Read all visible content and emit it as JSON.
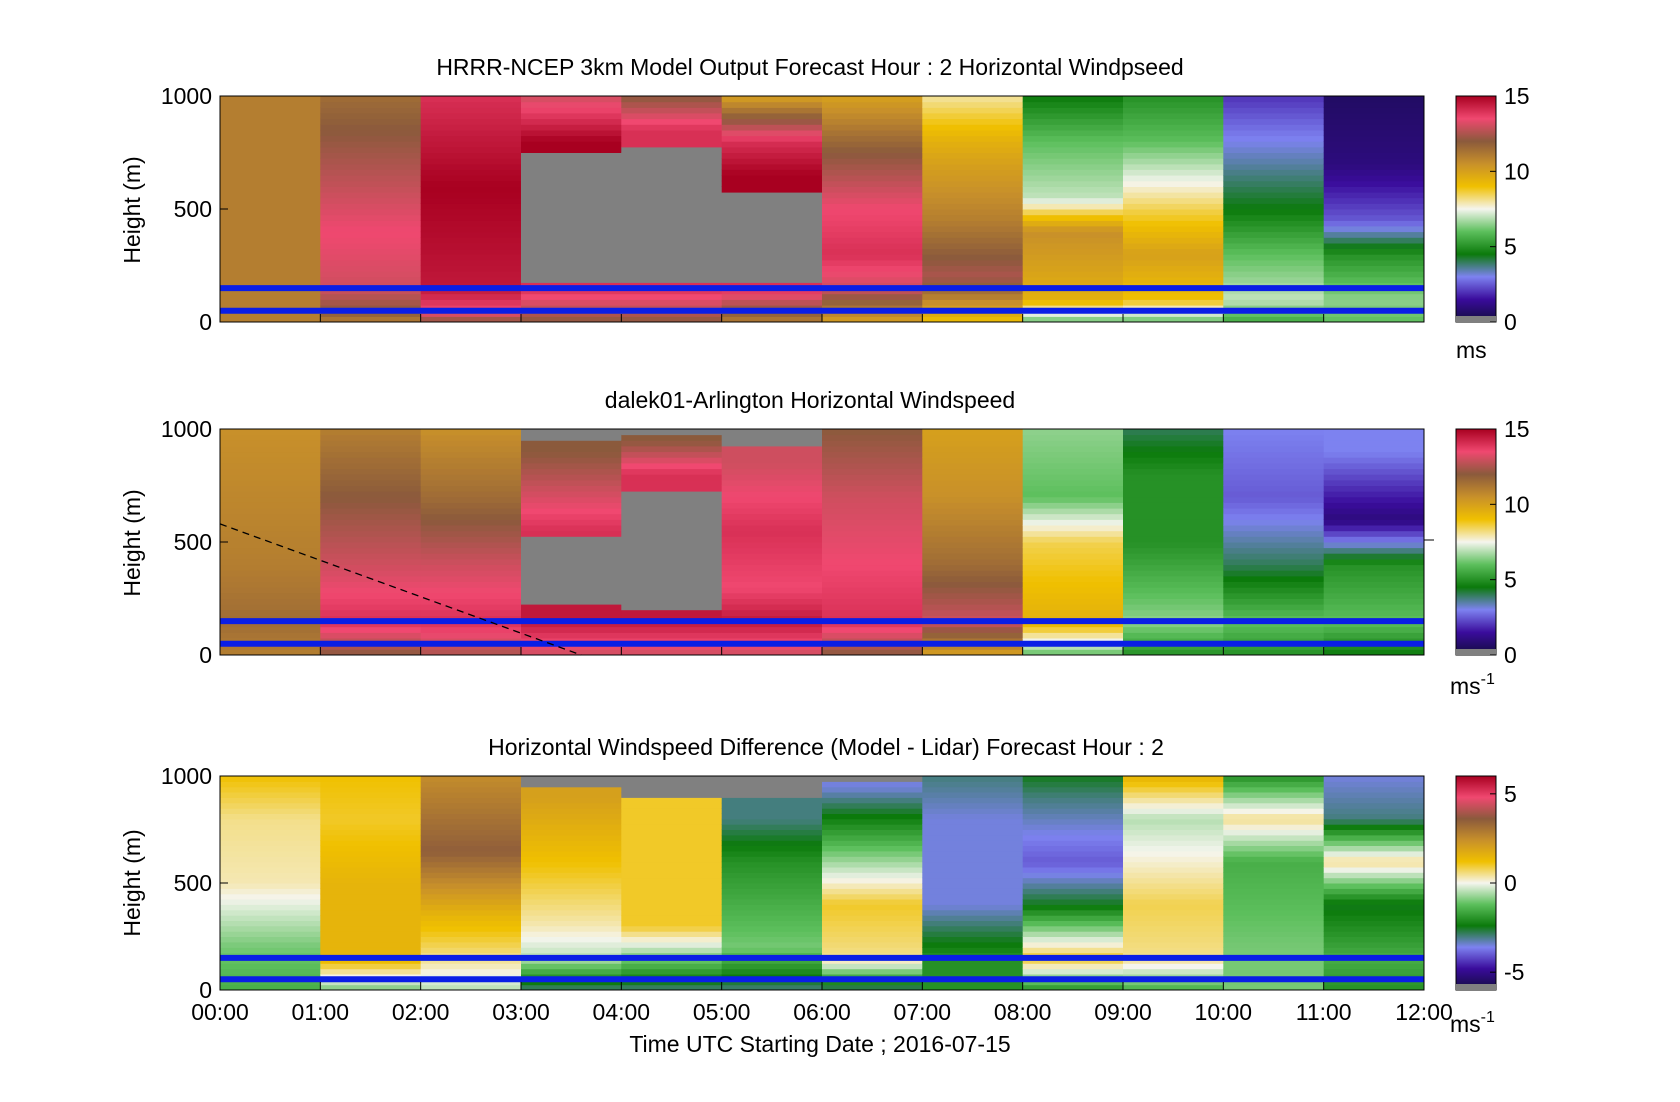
{
  "colors": {
    "missing": "#808080",
    "line_blue": "#0a1ee6",
    "sequential_stops": [
      "#120c3e",
      "#3a0c9c",
      "#7d82f0",
      "#0b7a0b",
      "#5cbf5c",
      "#f5f5ee",
      "#f0c000",
      "#c8902a",
      "#8b5a3c",
      "#f04870",
      "#a80020"
    ],
    "diverging_stops": [
      "#120c3e",
      "#3a0c9c",
      "#7d82f0",
      "#0b7a0b",
      "#5cbf5c",
      "#f5f5ee",
      "#f0c000",
      "#c8902a",
      "#8b5a3c",
      "#f04870",
      "#a80020"
    ]
  },
  "xaxis": {
    "ticks": [
      "00:00",
      "01:00",
      "02:00",
      "03:00",
      "04:00",
      "05:00",
      "06:00",
      "07:00",
      "08:00",
      "09:00",
      "10:00",
      "11:00",
      "12:00"
    ],
    "label": "Time UTC  Starting Date ; 2016-07-15"
  },
  "chart_data": [
    {
      "type": "heatmap",
      "title": "HRRR-NCEP 3km Model Output   Forecast Hour : 2 Horizontal Windpseed",
      "ylabel": "Height (m)",
      "yticks": [
        "0",
        "500",
        "1000"
      ],
      "ylim": [
        0,
        1000
      ],
      "xlim_hours": [
        0,
        12
      ],
      "colorbar": {
        "min": 0,
        "max": 15,
        "ticks": [
          "0",
          "5",
          "10",
          "15"
        ],
        "unit": "ms",
        "unit_sup": ""
      },
      "hlines_m": [
        150,
        50
      ],
      "hourly_profiles_ms": [
        [
          [
            0,
            11
          ],
          [
            60,
            11
          ],
          [
            100,
            11
          ],
          [
            1000,
            11
          ]
        ],
        [
          [
            0,
            11
          ],
          [
            50,
            12
          ],
          [
            150,
            13
          ],
          [
            400,
            13.5
          ],
          [
            700,
            12.5
          ],
          [
            1000,
            11.5
          ]
        ],
        [
          [
            0,
            12
          ],
          [
            50,
            13.5
          ],
          [
            150,
            14.5
          ],
          [
            600,
            15
          ],
          [
            1000,
            14
          ]
        ],
        [
          [
            0,
            12
          ],
          [
            150,
            14
          ],
          [
            200,
            null
          ],
          [
            700,
            null
          ],
          [
            800,
            15
          ],
          [
            1000,
            13
          ]
        ],
        [
          [
            0,
            12
          ],
          [
            150,
            14
          ],
          [
            200,
            null
          ],
          [
            700,
            null
          ],
          [
            850,
            14
          ],
          [
            1000,
            12
          ]
        ],
        [
          [
            0,
            11
          ],
          [
            150,
            14
          ],
          [
            200,
            null
          ],
          [
            500,
            null
          ],
          [
            650,
            15
          ],
          [
            800,
            14
          ],
          [
            1000,
            10
          ]
        ],
        [
          [
            0,
            10
          ],
          [
            150,
            13
          ],
          [
            300,
            14
          ],
          [
            500,
            13.5
          ],
          [
            750,
            12
          ],
          [
            1000,
            10
          ]
        ],
        [
          [
            0,
            9
          ],
          [
            200,
            12.5
          ],
          [
            450,
            11
          ],
          [
            700,
            10
          ],
          [
            800,
            9.5
          ],
          [
            1000,
            8
          ]
        ],
        [
          [
            0,
            6
          ],
          [
            100,
            9.5
          ],
          [
            400,
            10.5
          ],
          [
            550,
            7
          ],
          [
            800,
            6
          ],
          [
            1000,
            4.5
          ]
        ],
        [
          [
            0,
            6
          ],
          [
            100,
            9
          ],
          [
            300,
            10
          ],
          [
            500,
            8.5
          ],
          [
            800,
            6
          ],
          [
            1000,
            5
          ]
        ],
        [
          [
            0,
            5.5
          ],
          [
            100,
            7
          ],
          [
            300,
            6
          ],
          [
            500,
            4.5
          ],
          [
            700,
            3.5
          ],
          [
            850,
            2.8
          ],
          [
            1000,
            2
          ]
        ],
        [
          [
            0,
            6
          ],
          [
            100,
            6.5
          ],
          [
            300,
            5
          ],
          [
            450,
            2.5
          ],
          [
            700,
            1
          ],
          [
            1000,
            0.6
          ]
        ]
      ]
    },
    {
      "type": "heatmap",
      "title": "dalek01-Arlington  Horizontal Windspeed",
      "ylabel": "Height (m)",
      "yticks": [
        "0",
        "500",
        "1000"
      ],
      "ylim": [
        0,
        1000
      ],
      "xlim_hours": [
        0,
        12
      ],
      "colorbar": {
        "min": 0,
        "max": 15,
        "ticks": [
          "0",
          "5",
          "10",
          "15"
        ],
        "unit": "ms",
        "unit_sup": "-1"
      },
      "hlines_m": [
        150,
        50
      ],
      "dashed_line": {
        "from": [
          0,
          580
        ],
        "to": [
          3.6,
          0
        ]
      },
      "hourly_profiles_ms": [
        [
          [
            0,
            11
          ],
          [
            150,
            11.5
          ],
          [
            400,
            11
          ],
          [
            1000,
            10.5
          ]
        ],
        [
          [
            0,
            12
          ],
          [
            150,
            14
          ],
          [
            400,
            13
          ],
          [
            700,
            12
          ],
          [
            1000,
            11
          ]
        ],
        [
          [
            0,
            12.5
          ],
          [
            150,
            14
          ],
          [
            400,
            13
          ],
          [
            700,
            11.5
          ],
          [
            1000,
            10.5
          ]
        ],
        [
          [
            0,
            13
          ],
          [
            150,
            14.5
          ],
          [
            300,
            null
          ],
          [
            500,
            null
          ],
          [
            550,
            14
          ],
          [
            900,
            12
          ],
          [
            1000,
            null
          ]
        ],
        [
          [
            0,
            13
          ],
          [
            150,
            14.5
          ],
          [
            250,
            null
          ],
          [
            650,
            null
          ],
          [
            800,
            14
          ],
          [
            950,
            12
          ],
          [
            1000,
            null
          ]
        ],
        [
          [
            0,
            13
          ],
          [
            150,
            14.5
          ],
          [
            300,
            13.5
          ],
          [
            550,
            14
          ],
          [
            850,
            13
          ],
          [
            1000,
            null
          ]
        ],
        [
          [
            0,
            12
          ],
          [
            150,
            14
          ],
          [
            400,
            13.5
          ],
          [
            700,
            13
          ],
          [
            1000,
            12
          ]
        ],
        [
          [
            0,
            10
          ],
          [
            150,
            13
          ],
          [
            400,
            11.5
          ],
          [
            700,
            10.5
          ],
          [
            1000,
            10
          ]
        ],
        [
          [
            0,
            6
          ],
          [
            150,
            9.5
          ],
          [
            500,
            8.5
          ],
          [
            700,
            6
          ],
          [
            1000,
            6.5
          ]
        ],
        [
          [
            0,
            5
          ],
          [
            150,
            6.5
          ],
          [
            500,
            5
          ],
          [
            800,
            5
          ],
          [
            1000,
            4
          ]
        ],
        [
          [
            0,
            5
          ],
          [
            150,
            6
          ],
          [
            400,
            4
          ],
          [
            700,
            2.5
          ],
          [
            1000,
            3
          ]
        ],
        [
          [
            0,
            4.5
          ],
          [
            150,
            6
          ],
          [
            400,
            5
          ],
          [
            600,
            1
          ],
          [
            900,
            3
          ],
          [
            1000,
            3
          ]
        ]
      ]
    },
    {
      "type": "heatmap",
      "title": "Horizontal Windspeed Difference (Model - Lidar) Forecast Hour : 2",
      "ylabel": "Height (m)",
      "yticks": [
        "0",
        "500",
        "1000"
      ],
      "ylim": [
        0,
        1000
      ],
      "xlim_hours": [
        0,
        12
      ],
      "colorbar": {
        "min": -6,
        "max": 6,
        "ticks": [
          "-5",
          "0",
          "5"
        ],
        "unit": "ms",
        "unit_sup": "-1"
      },
      "hlines_m": [
        150,
        50
      ],
      "hourly_profiles_ms": [
        [
          [
            0,
            -1.5
          ],
          [
            200,
            -1
          ],
          [
            500,
            0.3
          ],
          [
            800,
            0.5
          ],
          [
            1000,
            1.2
          ]
        ],
        [
          [
            0,
            -1
          ],
          [
            150,
            1.5
          ],
          [
            500,
            1.5
          ],
          [
            800,
            1
          ],
          [
            1000,
            1.2
          ]
        ],
        [
          [
            0,
            -0.5
          ],
          [
            150,
            0.5
          ],
          [
            350,
            1.5
          ],
          [
            650,
            3.5
          ],
          [
            1000,
            2.5
          ]
        ],
        [
          [
            0,
            -3
          ],
          [
            150,
            -0.5
          ],
          [
            300,
            0.3
          ],
          [
            600,
            1.2
          ],
          [
            900,
            2
          ],
          [
            1000,
            null
          ]
        ],
        [
          [
            0,
            -3
          ],
          [
            150,
            -1
          ],
          [
            300,
            1
          ],
          [
            800,
            1
          ],
          [
            1000,
            null
          ]
        ],
        [
          [
            0,
            -3
          ],
          [
            200,
            -1
          ],
          [
            600,
            -2
          ],
          [
            800,
            -3
          ],
          [
            1000,
            null
          ]
        ],
        [
          [
            0,
            -3
          ],
          [
            150,
            0.5
          ],
          [
            400,
            1
          ],
          [
            700,
            -1.5
          ],
          [
            950,
            -3.5
          ],
          [
            1000,
            null
          ]
        ],
        [
          [
            0,
            -2
          ],
          [
            150,
            -2
          ],
          [
            400,
            -3.5
          ],
          [
            800,
            -3.5
          ],
          [
            1000,
            -3
          ]
        ],
        [
          [
            0,
            -2
          ],
          [
            150,
            1
          ],
          [
            400,
            -2.5
          ],
          [
            600,
            -4
          ],
          [
            900,
            -3
          ],
          [
            1000,
            -2.5
          ]
        ],
        [
          [
            0,
            -1.5
          ],
          [
            150,
            0.5
          ],
          [
            400,
            0.8
          ],
          [
            800,
            -0.5
          ],
          [
            1000,
            1.5
          ]
        ],
        [
          [
            0,
            -1
          ],
          [
            200,
            -1
          ],
          [
            600,
            -1.5
          ],
          [
            800,
            0.5
          ],
          [
            1000,
            -2
          ]
        ],
        [
          [
            0,
            -2
          ],
          [
            150,
            -1.5
          ],
          [
            400,
            -2.5
          ],
          [
            600,
            0.5
          ],
          [
            800,
            -3
          ],
          [
            1000,
            -3.5
          ]
        ]
      ]
    }
  ]
}
